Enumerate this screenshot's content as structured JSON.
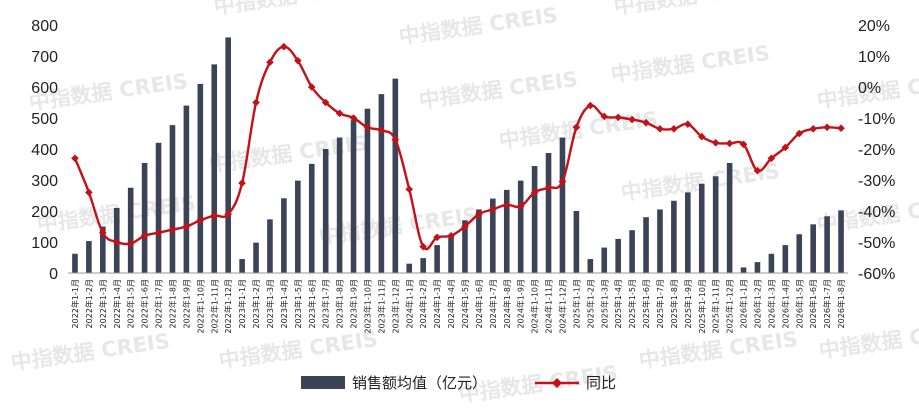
{
  "chart_data": {
    "type": "bar",
    "combo": "bar+line",
    "colors": {
      "bar": "#3b4356",
      "line": "#c3111a",
      "axis": "#999999"
    },
    "legend": {
      "placement": "bottom-center",
      "bar_label": "销售额均值（亿元）",
      "line_label": "同比"
    },
    "watermark": "中指数据 CREIS",
    "y_left": {
      "ticks": [
        "0",
        "100",
        "200",
        "300",
        "400",
        "500",
        "600",
        "700",
        "800"
      ],
      "range": [
        0,
        800
      ]
    },
    "y_right": {
      "ticks": [
        "-60%",
        "-50%",
        "-40%",
        "-30%",
        "-20%",
        "-10%",
        "0%",
        "10%",
        "20%"
      ],
      "range": [
        -60,
        20
      ]
    },
    "categories": [
      "2022年1-1月",
      "2022年1-2月",
      "2022年1-3月",
      "2022年1-4月",
      "2022年1-5月",
      "2022年1-6月",
      "2022年1-7月",
      "2022年1-8月",
      "2022年1-9月",
      "2022年1-10月",
      "2022年1-11月",
      "2022年1-12月",
      "2023年1-1月",
      "2023年1-2月",
      "2023年1-3月",
      "2023年1-4月",
      "2023年1-5月",
      "2023年1-6月",
      "2023年1-7月",
      "2023年1-8月",
      "2023年1-9月",
      "2023年1-10月",
      "2023年1-11月",
      "2023年1-12月",
      "2024年1-1月",
      "2024年1-2月",
      "2024年1-3月",
      "2024年1-4月",
      "2024年1-5月",
      "2024年1-6月",
      "2024年1-7月",
      "2024年1-8月",
      "2024年1-9月",
      "2024年1-10月",
      "2024年1-11月",
      "2024年1-12月",
      "2025年1-1月",
      "2025年1-2月",
      "2025年1-3月",
      "2025年1-4月",
      "2025年1-5月",
      "2025年1-6月",
      "2025年1-7月",
      "2025年1-8月",
      "2025年1-9月",
      "2025年1-10月",
      "2025年1-11月",
      "2025年1-12月",
      "2026年1-1月",
      "2026年1-2月",
      "2026年1-3月",
      "2026年1-4月",
      "2026年1-5月",
      "2026年1-6月",
      "2026年1-7月",
      "2026年1-8月"
    ],
    "series": [
      {
        "name": "销售额均值（亿元）",
        "kind": "bar",
        "values": [
          62,
          103,
          150,
          210,
          275,
          355,
          420,
          477,
          540,
          610,
          673,
          760,
          45,
          98,
          173,
          241,
          298,
          352,
          400,
          437,
          493,
          530,
          577,
          627,
          30,
          48,
          90,
          120,
          170,
          205,
          240,
          268,
          298,
          345,
          387,
          437,
          200,
          45,
          82,
          110,
          138,
          180,
          205,
          233,
          260,
          288,
          312,
          355,
          18,
          35,
          62,
          90,
          125,
          157,
          183,
          202
        ]
      },
      {
        "name": "同比",
        "kind": "line",
        "values": [
          -23,
          -34,
          -47,
          -50,
          -50.5,
          -48,
          -47,
          -46,
          -45,
          -43,
          -41.5,
          -41,
          -31,
          -5,
          8,
          13,
          8.5,
          0,
          -5,
          -8.5,
          -10,
          -13,
          -14,
          -17,
          -33,
          -51.5,
          -48.5,
          -48,
          -45,
          -41,
          -39.5,
          -38,
          -38.5,
          -34,
          -32.5,
          -30.5,
          -13,
          -6,
          -9.5,
          -9.8,
          -10.5,
          -11.5,
          -13.5,
          -13.5,
          -12,
          -16,
          -18,
          -18.2,
          -18.5,
          -27,
          -23,
          -19.5,
          -15,
          -13.5,
          -13,
          -13.3
        ]
      }
    ]
  }
}
